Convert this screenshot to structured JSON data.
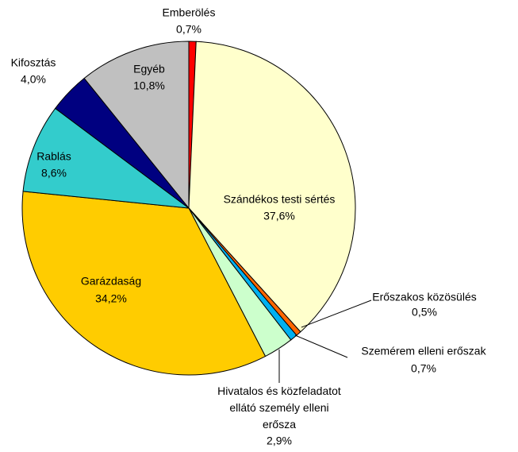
{
  "chart_data": {
    "type": "pie",
    "categories": [
      "Emberölés",
      "Szándékos testi sértés",
      "Erőszakos közösülés",
      "Szemérem elleni erőszak",
      "Hivatalos és közfeladatot ellátó személy elleni erőszak",
      "Garázdaság",
      "Rablás",
      "Kifosztás",
      "Egyéb"
    ],
    "values": [
      0.7,
      37.6,
      0.5,
      0.7,
      2.9,
      34.2,
      8.6,
      4.0,
      10.8
    ],
    "value_labels": [
      "0,7%",
      "37,6%",
      "0,5%",
      "0,7%",
      "2,9%",
      "34,2%",
      "8,6%",
      "4,0%",
      "10,8%"
    ],
    "colors": [
      "#ff0000",
      "#ffffcc",
      "#ff6600",
      "#00b0f0",
      "#ccffcc",
      "#ffcc00",
      "#33cccc",
      "#000080",
      "#c0c0c0"
    ]
  }
}
